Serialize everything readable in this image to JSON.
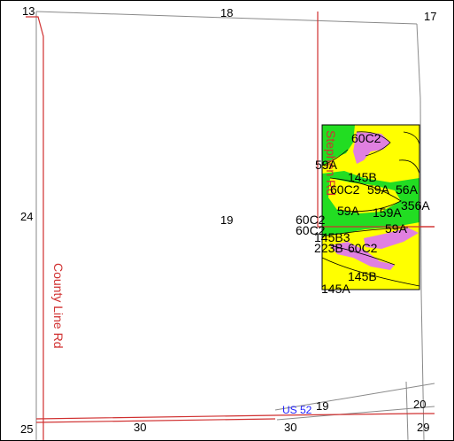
{
  "map": {
    "section_numbers": {
      "top_left": "13",
      "top_center": "18",
      "top_right": "17",
      "mid_left": "24",
      "center": "19",
      "bottom_left": "25",
      "bottom_30_left": "30",
      "bottom_30_center": "30",
      "bottom_19": "19",
      "bottom_20": "20",
      "bottom_29": "29"
    },
    "roads": {
      "county_line": "County Line Rd",
      "stephen": "Stephen Rd",
      "highway": "US 52"
    },
    "soil_labels": {
      "s1": "60C2",
      "s2": "59A",
      "s3": "145B",
      "s4": "60C2",
      "s5": "59A",
      "s6": "56A",
      "s7": "59A",
      "s8": "159A",
      "s9": "356A",
      "s10": "60C2",
      "s11": "59A",
      "s12": "60C2",
      "s13": "145B3",
      "s14": "223B",
      "s15": "60C2",
      "s16": "145B",
      "s17": "145A"
    },
    "colors": {
      "road": "#d03030",
      "section_line": "#8a8a8a",
      "soil_yellow": "#ffff00",
      "soil_green": "#22dd22",
      "soil_pink": "#e080e0",
      "highway_label": "#2020ff"
    }
  }
}
